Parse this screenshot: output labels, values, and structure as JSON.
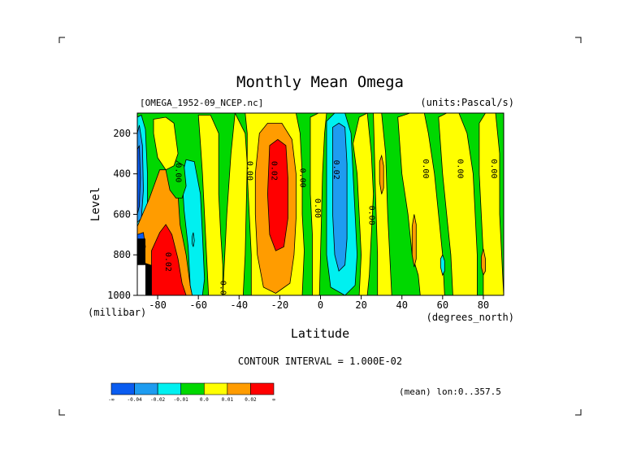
{
  "chart_data": {
    "type": "heatmap",
    "title": "Monthly Mean Omega",
    "file_label": "[OMEGA_1952-09_NCEP.nc]",
    "units_label": "(units:Pascal/s)",
    "xlabel": "Latitude",
    "xlabel_units": "(degrees_north)",
    "ylabel": "Level",
    "ylabel_units": "(millibar)",
    "x_ticks": [
      -80,
      -60,
      -40,
      -20,
      0,
      20,
      40,
      60,
      80
    ],
    "y_ticks": [
      200,
      400,
      600,
      800,
      1000
    ],
    "xlim": [
      -90,
      90
    ],
    "ylim": [
      1000,
      100
    ],
    "contour_interval_text": "CONTOUR INTERVAL = 1.000E-02",
    "footer_note": "(mean) lon:0..357.5",
    "colorbar": {
      "colors": [
        "#0a5cf0",
        "#1e9cf0",
        "#00f0f0",
        "#00d800",
        "#ffff00",
        "#ff9c00",
        "#ff0000"
      ],
      "labels": [
        "-∞",
        "-0.04",
        "-0.02",
        "-0.01",
        "0.0",
        "0.01",
        "0.02",
        "∞"
      ]
    },
    "contour_labels": [
      {
        "text": "0.00",
        "lat": -71,
        "lev": 395,
        "rot": 90
      },
      {
        "text": "0.00",
        "lat": -36,
        "lev": 385,
        "rot": 90
      },
      {
        "text": "0.02",
        "lat": -24,
        "lev": 385,
        "rot": 90
      },
      {
        "text": "0.00",
        "lat": -10,
        "lev": 420,
        "rot": 90
      },
      {
        "text": "0.00",
        "lat": -2.5,
        "lev": 570,
        "rot": 90
      },
      {
        "text": "0.02",
        "lat": 6.5,
        "lev": 380,
        "rot": 90
      },
      {
        "text": "0.00",
        "lat": 24,
        "lev": 605,
        "rot": 90
      },
      {
        "text": "0.00",
        "lat": 50.5,
        "lev": 375,
        "rot": 90
      },
      {
        "text": "0.00",
        "lat": 67.5,
        "lev": 375,
        "rot": 90
      },
      {
        "text": "0.00",
        "lat": 84,
        "lev": 375,
        "rot": 90
      },
      {
        "text": "0.00",
        "lat": -49,
        "lev": 975,
        "rot": 90
      },
      {
        "text": "0.02",
        "lat": -76,
        "lev": 835,
        "rot": 90
      }
    ],
    "regions": [
      {
        "name": "cyan-strip-left",
        "color": "#00f0f0",
        "poly": [
          [
            -90,
            120
          ],
          [
            -88,
            110
          ],
          [
            -86,
            180
          ],
          [
            -85,
            400
          ],
          [
            -85,
            600
          ],
          [
            -87,
            700
          ],
          [
            -90,
            720
          ]
        ]
      },
      {
        "name": "blue-strip-left",
        "color": "#1e9cf0",
        "poly": [
          [
            -90,
            200
          ],
          [
            -89,
            160
          ],
          [
            -87.5,
            260
          ],
          [
            -87,
            480
          ],
          [
            -88,
            620
          ],
          [
            -90,
            640
          ]
        ]
      },
      {
        "name": "deepblue-strip-left",
        "color": "#0a5cf0",
        "poly": [
          [
            -90,
            280
          ],
          [
            -89,
            260
          ],
          [
            -88.5,
            420
          ],
          [
            -89,
            560
          ],
          [
            -90,
            600
          ]
        ]
      },
      {
        "name": "orange-lower-left",
        "color": "#ff9c00",
        "poly": [
          [
            -90,
            660
          ],
          [
            -84,
            520
          ],
          [
            -79,
            380
          ],
          [
            -74,
            380
          ],
          [
            -70,
            500
          ],
          [
            -69,
            650
          ],
          [
            -66,
            800
          ],
          [
            -64,
            950
          ],
          [
            -63,
            1000
          ],
          [
            -90,
            1000
          ]
        ]
      },
      {
        "name": "red-lower-left",
        "color": "#ff0000",
        "poly": [
          [
            -83,
            780
          ],
          [
            -79,
            690
          ],
          [
            -76,
            650
          ],
          [
            -73,
            700
          ],
          [
            -70,
            820
          ],
          [
            -68,
            940
          ],
          [
            -66,
            1000
          ],
          [
            -83,
            1000
          ]
        ]
      },
      {
        "name": "deepblue-lower-left",
        "color": "#0a5cf0",
        "poly": [
          [
            -90,
            700
          ],
          [
            -87,
            690
          ],
          [
            -86,
            760
          ],
          [
            -87,
            800
          ],
          [
            -90,
            810
          ]
        ]
      },
      {
        "name": "cyan-left-mid",
        "color": "#00f0f0",
        "poly": [
          [
            -68,
            410
          ],
          [
            -66,
            330
          ],
          [
            -62,
            340
          ],
          [
            -59,
            500
          ],
          [
            -58,
            700
          ],
          [
            -57,
            920
          ],
          [
            -58,
            1000
          ],
          [
            -63,
            1000
          ],
          [
            -64,
            950
          ],
          [
            -65,
            760
          ],
          [
            -67,
            580
          ]
        ]
      },
      {
        "name": "green-left-mid",
        "color": "#00d800",
        "poly": [
          [
            -76,
            380
          ],
          [
            -72,
            330
          ],
          [
            -67,
            360
          ],
          [
            -66,
            460
          ],
          [
            -68,
            520
          ],
          [
            -71,
            520
          ],
          [
            -74,
            480
          ]
        ]
      },
      {
        "name": "yellow-left-1",
        "color": "#ffff00",
        "poly": [
          [
            -82,
            130
          ],
          [
            -76,
            120
          ],
          [
            -72,
            150
          ],
          [
            -70,
            300
          ],
          [
            -72,
            360
          ],
          [
            -76,
            380
          ],
          [
            -80,
            320
          ],
          [
            -82,
            200
          ]
        ]
      },
      {
        "name": "yellow-left-2",
        "color": "#ffff00",
        "poly": [
          [
            -60,
            110
          ],
          [
            -54,
            110
          ],
          [
            -50,
            200
          ],
          [
            -50,
            500
          ],
          [
            -49,
            700
          ],
          [
            -48,
            850
          ],
          [
            -48,
            1000
          ],
          [
            -55,
            1000
          ],
          [
            -56,
            800
          ],
          [
            -57,
            600
          ],
          [
            -58,
            400
          ],
          [
            -59,
            250
          ]
        ]
      },
      {
        "name": "yellow-mid-1",
        "color": "#ffff00",
        "poly": [
          [
            -42,
            100
          ],
          [
            -37,
            200
          ],
          [
            -36,
            350
          ],
          [
            -37,
            800
          ],
          [
            -38,
            1000
          ],
          [
            -48,
            1000
          ],
          [
            -47,
            800
          ],
          [
            -46,
            600
          ],
          [
            -44,
            300
          ]
        ]
      },
      {
        "name": "yellow-mid-2",
        "color": "#ffff00",
        "poly": [
          [
            -37,
            100
          ],
          [
            -12,
            100
          ],
          [
            -10,
            200
          ],
          [
            -9,
            400
          ],
          [
            -9,
            600
          ],
          [
            -8,
            780
          ],
          [
            -9,
            1000
          ],
          [
            -34,
            1000
          ],
          [
            -34,
            800
          ],
          [
            -35,
            600
          ],
          [
            -36,
            400
          ],
          [
            -36,
            200
          ]
        ]
      },
      {
        "name": "orange-central",
        "color": "#ff9c00",
        "poly": [
          [
            -30,
            200
          ],
          [
            -26,
            150
          ],
          [
            -19,
            150
          ],
          [
            -14,
            230
          ],
          [
            -12,
            400
          ],
          [
            -12,
            620
          ],
          [
            -13,
            800
          ],
          [
            -15,
            940
          ],
          [
            -22,
            990
          ],
          [
            -28,
            960
          ],
          [
            -31,
            800
          ],
          [
            -32,
            600
          ],
          [
            -32,
            400
          ]
        ]
      },
      {
        "name": "red-central",
        "color": "#ff0000",
        "poly": [
          [
            -25,
            260
          ],
          [
            -21,
            230
          ],
          [
            -17,
            260
          ],
          [
            -16,
            420
          ],
          [
            -16,
            620
          ],
          [
            -18,
            760
          ],
          [
            -22,
            780
          ],
          [
            -25,
            700
          ],
          [
            -26,
            500
          ]
        ]
      },
      {
        "name": "yellow-eq",
        "color": "#ffff00",
        "poly": [
          [
            -5,
            120
          ],
          [
            -1,
            100
          ],
          [
            3,
            100
          ],
          [
            2,
            200
          ],
          [
            1,
            400
          ],
          [
            0.5,
            600
          ],
          [
            0,
            800
          ],
          [
            -0.5,
            1000
          ],
          [
            -4,
            1000
          ],
          [
            -4,
            700
          ],
          [
            -5,
            500
          ]
        ]
      },
      {
        "name": "cyan-eq",
        "color": "#00f0f0",
        "poly": [
          [
            3,
            140
          ],
          [
            7,
            100
          ],
          [
            12,
            100
          ],
          [
            15,
            200
          ],
          [
            16,
            400
          ],
          [
            17,
            600
          ],
          [
            18,
            800
          ],
          [
            17,
            950
          ],
          [
            12,
            1000
          ],
          [
            5,
            960
          ],
          [
            3,
            800
          ],
          [
            3,
            500
          ]
        ]
      },
      {
        "name": "blue-eq",
        "color": "#1e9cf0",
        "poly": [
          [
            6,
            170
          ],
          [
            9,
            150
          ],
          [
            12,
            170
          ],
          [
            13,
            350
          ],
          [
            13,
            550
          ],
          [
            13,
            720
          ],
          [
            12,
            850
          ],
          [
            9,
            880
          ],
          [
            7,
            800
          ],
          [
            6,
            600
          ],
          [
            6,
            350
          ]
        ]
      },
      {
        "name": "yellow-band-1",
        "color": "#ffff00",
        "poly": [
          [
            16,
            250
          ],
          [
            19,
            120
          ],
          [
            23,
            100
          ],
          [
            25,
            300
          ],
          [
            26,
            500
          ],
          [
            25,
            700
          ],
          [
            24,
            900
          ],
          [
            23,
            1000
          ],
          [
            19,
            1000
          ],
          [
            20,
            800
          ],
          [
            19,
            600
          ],
          [
            18,
            400
          ]
        ]
      },
      {
        "name": "yellow-band-2",
        "color": "#ffff00",
        "poly": [
          [
            26,
            100
          ],
          [
            30,
            100
          ],
          [
            32,
            300
          ],
          [
            33,
            600
          ],
          [
            34,
            800
          ],
          [
            35,
            1000
          ],
          [
            28,
            1000
          ],
          [
            28,
            800
          ],
          [
            27,
            500
          ]
        ]
      },
      {
        "name": "yellow-right-main",
        "color": "#ffff00",
        "poly": [
          [
            38,
            120
          ],
          [
            44,
            100
          ],
          [
            51,
            100
          ],
          [
            53,
            200
          ],
          [
            56,
            400
          ],
          [
            58,
            600
          ],
          [
            60,
            800
          ],
          [
            61,
            1000
          ],
          [
            49,
            1000
          ],
          [
            48,
            900
          ],
          [
            45,
            800
          ],
          [
            43,
            600
          ],
          [
            40,
            400
          ]
        ]
      },
      {
        "name": "yellow-right-2",
        "color": "#ffff00",
        "poly": [
          [
            58,
            120
          ],
          [
            62,
            100
          ],
          [
            68,
            100
          ],
          [
            72,
            200
          ],
          [
            75,
            400
          ],
          [
            76,
            600
          ],
          [
            77,
            800
          ],
          [
            77,
            1000
          ],
          [
            65,
            1000
          ],
          [
            64,
            800
          ],
          [
            62,
            600
          ],
          [
            60,
            400
          ]
        ]
      },
      {
        "name": "yellow-right-3",
        "color": "#ffff00",
        "poly": [
          [
            78,
            150
          ],
          [
            81,
            100
          ],
          [
            86,
            100
          ],
          [
            88,
            300
          ],
          [
            88,
            600
          ],
          [
            89,
            800
          ],
          [
            90,
            1000
          ],
          [
            80,
            1000
          ],
          [
            80,
            800
          ],
          [
            79,
            600
          ],
          [
            78,
            400
          ]
        ]
      },
      {
        "name": "orange-right-1",
        "color": "#ff9c00",
        "poly": [
          [
            29,
            340
          ],
          [
            30,
            310
          ],
          [
            31,
            360
          ],
          [
            31,
            470
          ],
          [
            30,
            500
          ],
          [
            29,
            440
          ]
        ]
      },
      {
        "name": "orange-right-2",
        "color": "#ff9c00",
        "poly": [
          [
            45,
            660
          ],
          [
            46,
            600
          ],
          [
            47,
            650
          ],
          [
            47,
            820
          ],
          [
            46,
            860
          ],
          [
            45,
            800
          ]
        ]
      },
      {
        "name": "orange-right-3",
        "color": "#ff9c00",
        "poly": [
          [
            79,
            810
          ],
          [
            80,
            770
          ],
          [
            81,
            820
          ],
          [
            81,
            880
          ],
          [
            80,
            900
          ],
          [
            79,
            860
          ]
        ]
      },
      {
        "name": "cyan-right-blob",
        "color": "#00f0f0",
        "poly": [
          [
            59,
            820
          ],
          [
            60,
            800
          ],
          [
            61,
            830
          ],
          [
            61,
            880
          ],
          [
            60,
            900
          ],
          [
            59,
            860
          ]
        ]
      },
      {
        "name": "cyan-left-blob",
        "color": "#00f0f0",
        "poly": [
          [
            -63,
            710
          ],
          [
            -62.5,
            690
          ],
          [
            -62,
            730
          ],
          [
            -62.5,
            760
          ],
          [
            -63,
            745
          ]
        ]
      }
    ],
    "black_block": {
      "poly": [
        [
          -90,
          720
        ],
        [
          -86,
          720
        ],
        [
          -86,
          840
        ],
        [
          -83,
          850
        ],
        [
          -83,
          1000
        ],
        [
          -90,
          1000
        ]
      ]
    },
    "white_hole": {
      "poly": [
        [
          -90,
          850
        ],
        [
          -86,
          850
        ],
        [
          -86,
          1000
        ],
        [
          -90,
          1000
        ]
      ]
    }
  }
}
